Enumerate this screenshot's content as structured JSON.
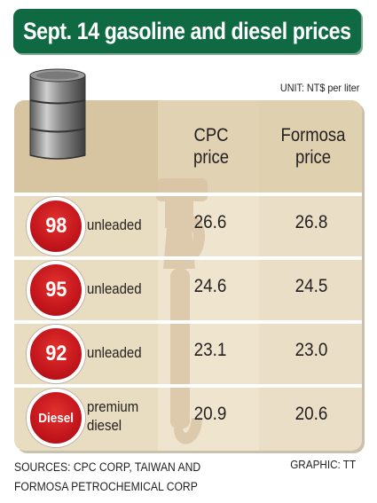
{
  "title": "Sept. 14 gasoline and diesel prices",
  "unit": "UNIT: NT$ per liter",
  "columns": {
    "cpc": "CPC\nprice",
    "formosa": "Formosa\nprice"
  },
  "rows": [
    {
      "badge": "98",
      "label": "unleaded",
      "cpc": "26.6",
      "formosa": "26.8"
    },
    {
      "badge": "95",
      "label": "unleaded",
      "cpc": "24.6",
      "formosa": "24.5"
    },
    {
      "badge": "92",
      "label": "unleaded",
      "cpc": "23.1",
      "formosa": "23.0"
    },
    {
      "badge": "Diesel",
      "label": "premium\ndiesel",
      "cpc": "20.9",
      "formosa": "20.6"
    }
  ],
  "sources": "SOURCES: CPC CORP, TAIWAN AND\nFORMOSA PETROCHEMICAL CORP",
  "credit": "GRAPHIC: TT",
  "colors": {
    "title_bg": "#0f6a43",
    "badge_red": "#c3161c",
    "panel": "#e8dcc1",
    "header_band": "#d8c8a4"
  },
  "icons": [
    "oil-barrel-icon",
    "fuel-nozzle-icon"
  ],
  "chart_data": {
    "type": "table",
    "title": "Sept. 14 gasoline and diesel prices",
    "unit": "NT$ per liter",
    "columns": [
      "CPC price",
      "Formosa price"
    ],
    "rows": [
      {
        "fuel": "98 unleaded",
        "values": [
          26.6,
          26.8
        ]
      },
      {
        "fuel": "95 unleaded",
        "values": [
          24.6,
          24.5
        ]
      },
      {
        "fuel": "92 unleaded",
        "values": [
          23.1,
          23.0
        ]
      },
      {
        "fuel": "Diesel premium diesel",
        "values": [
          20.9,
          20.6
        ]
      }
    ]
  }
}
